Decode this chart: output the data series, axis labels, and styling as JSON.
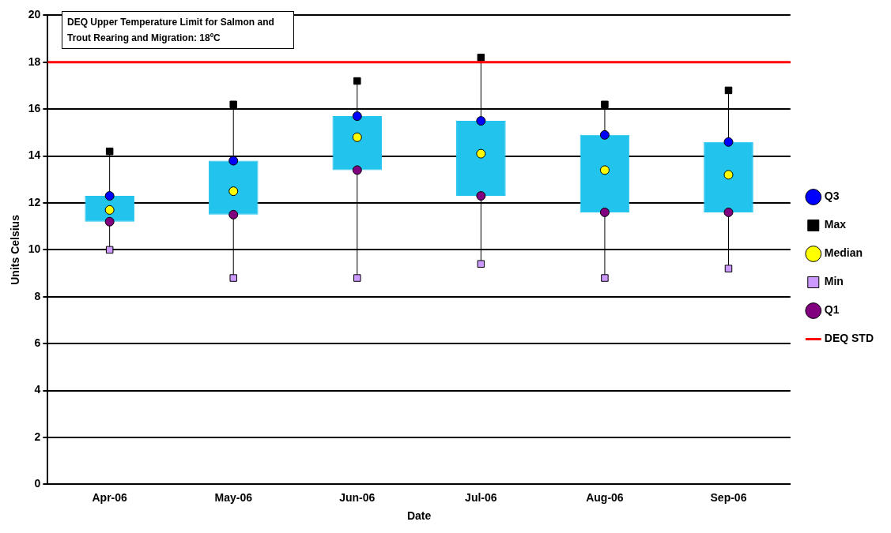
{
  "chart_data": {
    "type": "box",
    "xlabel": "Date",
    "ylabel": "Units Celsius",
    "categories": [
      "Apr-06",
      "May-06",
      "Jun-06",
      "Jul-06",
      "Aug-06",
      "Sep-06"
    ],
    "boxes": [
      {
        "low": 10.0,
        "q1": 11.2,
        "q3": 12.3,
        "high": 14.2
      },
      {
        "low": 8.8,
        "q1": 11.5,
        "q3": 13.8,
        "high": 16.2
      },
      {
        "low": 8.8,
        "q1": 13.4,
        "q3": 15.7,
        "high": 17.2
      },
      {
        "low": 9.4,
        "q1": 12.3,
        "q3": 15.5,
        "high": 18.2
      },
      {
        "low": 8.8,
        "q1": 11.6,
        "q3": 14.9,
        "high": 16.2
      },
      {
        "low": 9.2,
        "q1": 11.6,
        "q3": 14.6,
        "high": 16.8
      }
    ],
    "color": "#22c4ee",
    "series": [
      {
        "type": "scatter",
        "name": "Q3",
        "color": "#0000ff",
        "marker": "circle",
        "values": [
          12.3,
          13.8,
          15.7,
          15.5,
          14.9,
          14.6
        ]
      },
      {
        "type": "scatter",
        "name": "Max",
        "color": "#000000",
        "marker": "square",
        "values": [
          14.2,
          16.2,
          17.2,
          18.2,
          16.2,
          16.8
        ]
      },
      {
        "type": "scatter",
        "name": "Median",
        "color": "#ffff00",
        "marker": "circle",
        "values": [
          11.7,
          12.5,
          14.8,
          14.1,
          13.4,
          13.2
        ]
      },
      {
        "type": "scatter",
        "name": "Min",
        "color": "#cc99ff",
        "marker": "square",
        "values": [
          10.0,
          8.8,
          8.8,
          9.4,
          8.8,
          9.2
        ]
      },
      {
        "type": "scatter",
        "name": "Q1",
        "color": "#800080",
        "marker": "circle",
        "values": [
          11.2,
          11.5,
          13.4,
          12.3,
          11.6,
          11.6
        ]
      }
    ],
    "ref_lines": [
      {
        "axis": "y",
        "value": 18,
        "label": "DEQ STD",
        "color": "#ff0000"
      }
    ],
    "annotations": [
      "DEQ Upper Temperature Limit for Salmon and Trout Rearing and Migration: 18ºC"
    ],
    "ylim": [
      0,
      20
    ],
    "yticks": [
      0,
      2,
      4,
      6,
      8,
      10,
      12,
      14,
      16,
      18,
      20
    ],
    "grid": "y",
    "legend": "right"
  }
}
